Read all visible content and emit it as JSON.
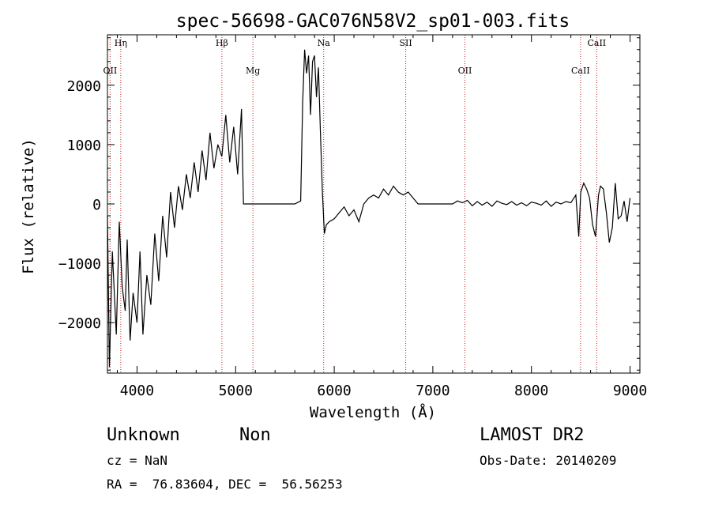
{
  "chart_data": {
    "type": "line",
    "title": "spec-56698-GAC076N58V2_sp01-003.fits",
    "xlabel": "Wavelength (Å)",
    "ylabel": "Flux (relative)",
    "xlim": [
      3700,
      9100
    ],
    "ylim": [
      -2850,
      2850
    ],
    "x_ticks": [
      4000,
      5000,
      6000,
      7000,
      8000,
      9000
    ],
    "y_ticks": [
      -2000,
      -1000,
      0,
      1000,
      2000
    ],
    "x_tick_labels": [
      "4000",
      "5000",
      "6000",
      "7000",
      "8000",
      "9000"
    ],
    "y_tick_labels": [
      "−2000",
      "−1000",
      "0",
      "1000",
      "2000"
    ],
    "line_color": "#000000",
    "marker_color": "#b22222",
    "series": [
      {
        "x": [
          3700,
          3720,
          3750,
          3790,
          3820,
          3850,
          3880,
          3900,
          3930,
          3960,
          4000,
          4030,
          4060,
          4100,
          4140,
          4180,
          4220,
          4260,
          4300,
          4340,
          4380,
          4420,
          4460,
          4500,
          4540,
          4580,
          4620,
          4660,
          4700,
          4740,
          4780,
          4820,
          4860,
          4900,
          4940,
          4980,
          5020,
          5060,
          5080,
          5200,
          5400,
          5600,
          5660,
          5680,
          5700,
          5720,
          5740,
          5760,
          5780,
          5800,
          5820,
          5840,
          5860,
          5880,
          5900,
          5920,
          5950,
          6000,
          6050,
          6100,
          6150,
          6200,
          6250,
          6300,
          6350,
          6400,
          6450,
          6500,
          6550,
          6600,
          6650,
          6700,
          6750,
          6800,
          6850,
          7000,
          7200,
          7250,
          7300,
          7350,
          7400,
          7450,
          7500,
          7550,
          7600,
          7650,
          7700,
          7750,
          7800,
          7850,
          7900,
          7950,
          8000,
          8050,
          8100,
          8150,
          8200,
          8250,
          8300,
          8350,
          8400,
          8450,
          8480,
          8500,
          8530,
          8560,
          8590,
          8620,
          8650,
          8680,
          8700,
          8730,
          8760,
          8790,
          8820,
          8850,
          8880,
          8910,
          8940,
          8970,
          9000
        ],
        "y": [
          -200,
          -2750,
          -800,
          -2200,
          -300,
          -1400,
          -1800,
          -600,
          -2300,
          -1500,
          -2000,
          -800,
          -2200,
          -1200,
          -1700,
          -500,
          -1300,
          -200,
          -900,
          200,
          -400,
          300,
          -100,
          500,
          100,
          700,
          200,
          900,
          400,
          1200,
          600,
          1000,
          800,
          1500,
          700,
          1300,
          500,
          1600,
          0,
          0,
          0,
          0,
          50,
          1700,
          2600,
          2200,
          2500,
          1500,
          2400,
          2500,
          1800,
          2300,
          1200,
          200,
          -500,
          -350,
          -300,
          -250,
          -150,
          -50,
          -200,
          -100,
          -300,
          0,
          100,
          150,
          100,
          250,
          150,
          300,
          200,
          150,
          200,
          100,
          0,
          0,
          0,
          50,
          20,
          60,
          -30,
          40,
          -20,
          30,
          -40,
          50,
          10,
          -10,
          40,
          -20,
          20,
          -30,
          30,
          10,
          -20,
          50,
          -40,
          30,
          0,
          40,
          20,
          150,
          -550,
          200,
          350,
          250,
          100,
          -350,
          -550,
          150,
          300,
          250,
          -150,
          -650,
          -400,
          350,
          -250,
          -200,
          50,
          -300,
          100
        ]
      }
    ],
    "line_markers": [
      {
        "label": "Hη",
        "wavelength": 3835
      },
      {
        "label": "OII",
        "wavelength": 3727
      },
      {
        "label": "Hβ",
        "wavelength": 4861
      },
      {
        "label": "Mg",
        "wavelength": 5175
      },
      {
        "label": "Na",
        "wavelength": 5893
      },
      {
        "label": "OII",
        "wavelength": 7325
      },
      {
        "label": "SII",
        "wavelength": 6725
      },
      {
        "label": "CaII",
        "wavelength": 8498
      },
      {
        "label": "CaII",
        "wavelength": 8662
      }
    ]
  },
  "info": {
    "object_class": "Unknown",
    "object_subclass": "Non",
    "cz": "cz = NaN",
    "coords": "RA =  76.83604, DEC =  56.56253",
    "survey": "LAMOST DR2",
    "obs_date": "Obs-Date: 20140209"
  }
}
